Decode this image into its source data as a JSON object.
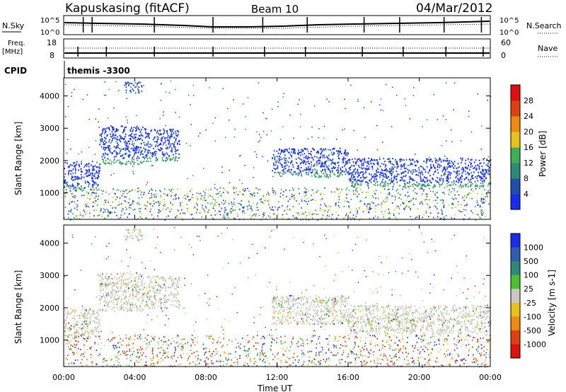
{
  "header": {
    "station": "Kapuskasing (fitACF)",
    "beam": "Beam 10",
    "date": "04/Mar/2012"
  },
  "top_panels": {
    "nsky_label": "N.Sky",
    "nsearch_label": "N.Search",
    "nsky_ticks": [
      "10^5",
      "10^0"
    ],
    "freq_label": "Freq.",
    "freq_unit": "[MHz]",
    "freq_ticks": [
      "18",
      "8"
    ],
    "nave_label": "Nave",
    "nave_ticks": [
      "60",
      "0"
    ],
    "cpid_label": "CPID",
    "cpid_value": "themis -3300"
  },
  "chart_data": [
    {
      "type": "heatmap",
      "name": "power",
      "ylabel": "Slant Range [km]",
      "ylim": [
        180,
        4560
      ],
      "yticks": [
        1000,
        2000,
        3000,
        4000
      ],
      "xlim": [
        0,
        24
      ],
      "colorbar": {
        "label": "Power [dB]",
        "levels": [
          "4",
          "8",
          "12",
          "16",
          "20",
          "24",
          "28"
        ],
        "colors": [
          "#1a2bf0",
          "#1f4fa8",
          "#2d8a78",
          "#3fae55",
          "#e8c21c",
          "#f08a10",
          "#e04010",
          "#e01010"
        ]
      },
      "echo_bands": [
        {
          "x0": 0.0,
          "x1": 2.0,
          "y0": 1100,
          "y1": 2000
        },
        {
          "x0": 2.0,
          "x1": 4.5,
          "y0": 1900,
          "y1": 3100
        },
        {
          "x0": 4.5,
          "x1": 6.5,
          "y0": 2000,
          "y1": 3000
        },
        {
          "x0": 3.4,
          "x1": 4.4,
          "y0": 4100,
          "y1": 4450
        },
        {
          "x0": 11.7,
          "x1": 16.0,
          "y0": 1500,
          "y1": 2400
        },
        {
          "x0": 16.0,
          "x1": 24.0,
          "y0": 1200,
          "y1": 2100
        }
      ]
    },
    {
      "type": "heatmap",
      "name": "velocity",
      "ylabel": "Slant Range [km]",
      "ylim": [
        180,
        4560
      ],
      "yticks": [
        1000,
        2000,
        3000,
        4000
      ],
      "xlim": [
        0,
        24
      ],
      "xticks": [
        "00:00",
        "04:00",
        "08:00",
        "12:00",
        "16:00",
        "20:00",
        "00:00"
      ],
      "xlabel": "Time UT",
      "colorbar": {
        "label": "Velocity [m s-1]",
        "levels": [
          "1000",
          "500",
          "100",
          "25",
          "-25",
          "-100",
          "-500",
          "-1000"
        ],
        "colors": [
          "#1a2bf0",
          "#2d5cb0",
          "#2d8a78",
          "#4cc030",
          "#c8c8c0",
          "#e8c21c",
          "#f08a10",
          "#e04010",
          "#e01010"
        ]
      }
    }
  ]
}
